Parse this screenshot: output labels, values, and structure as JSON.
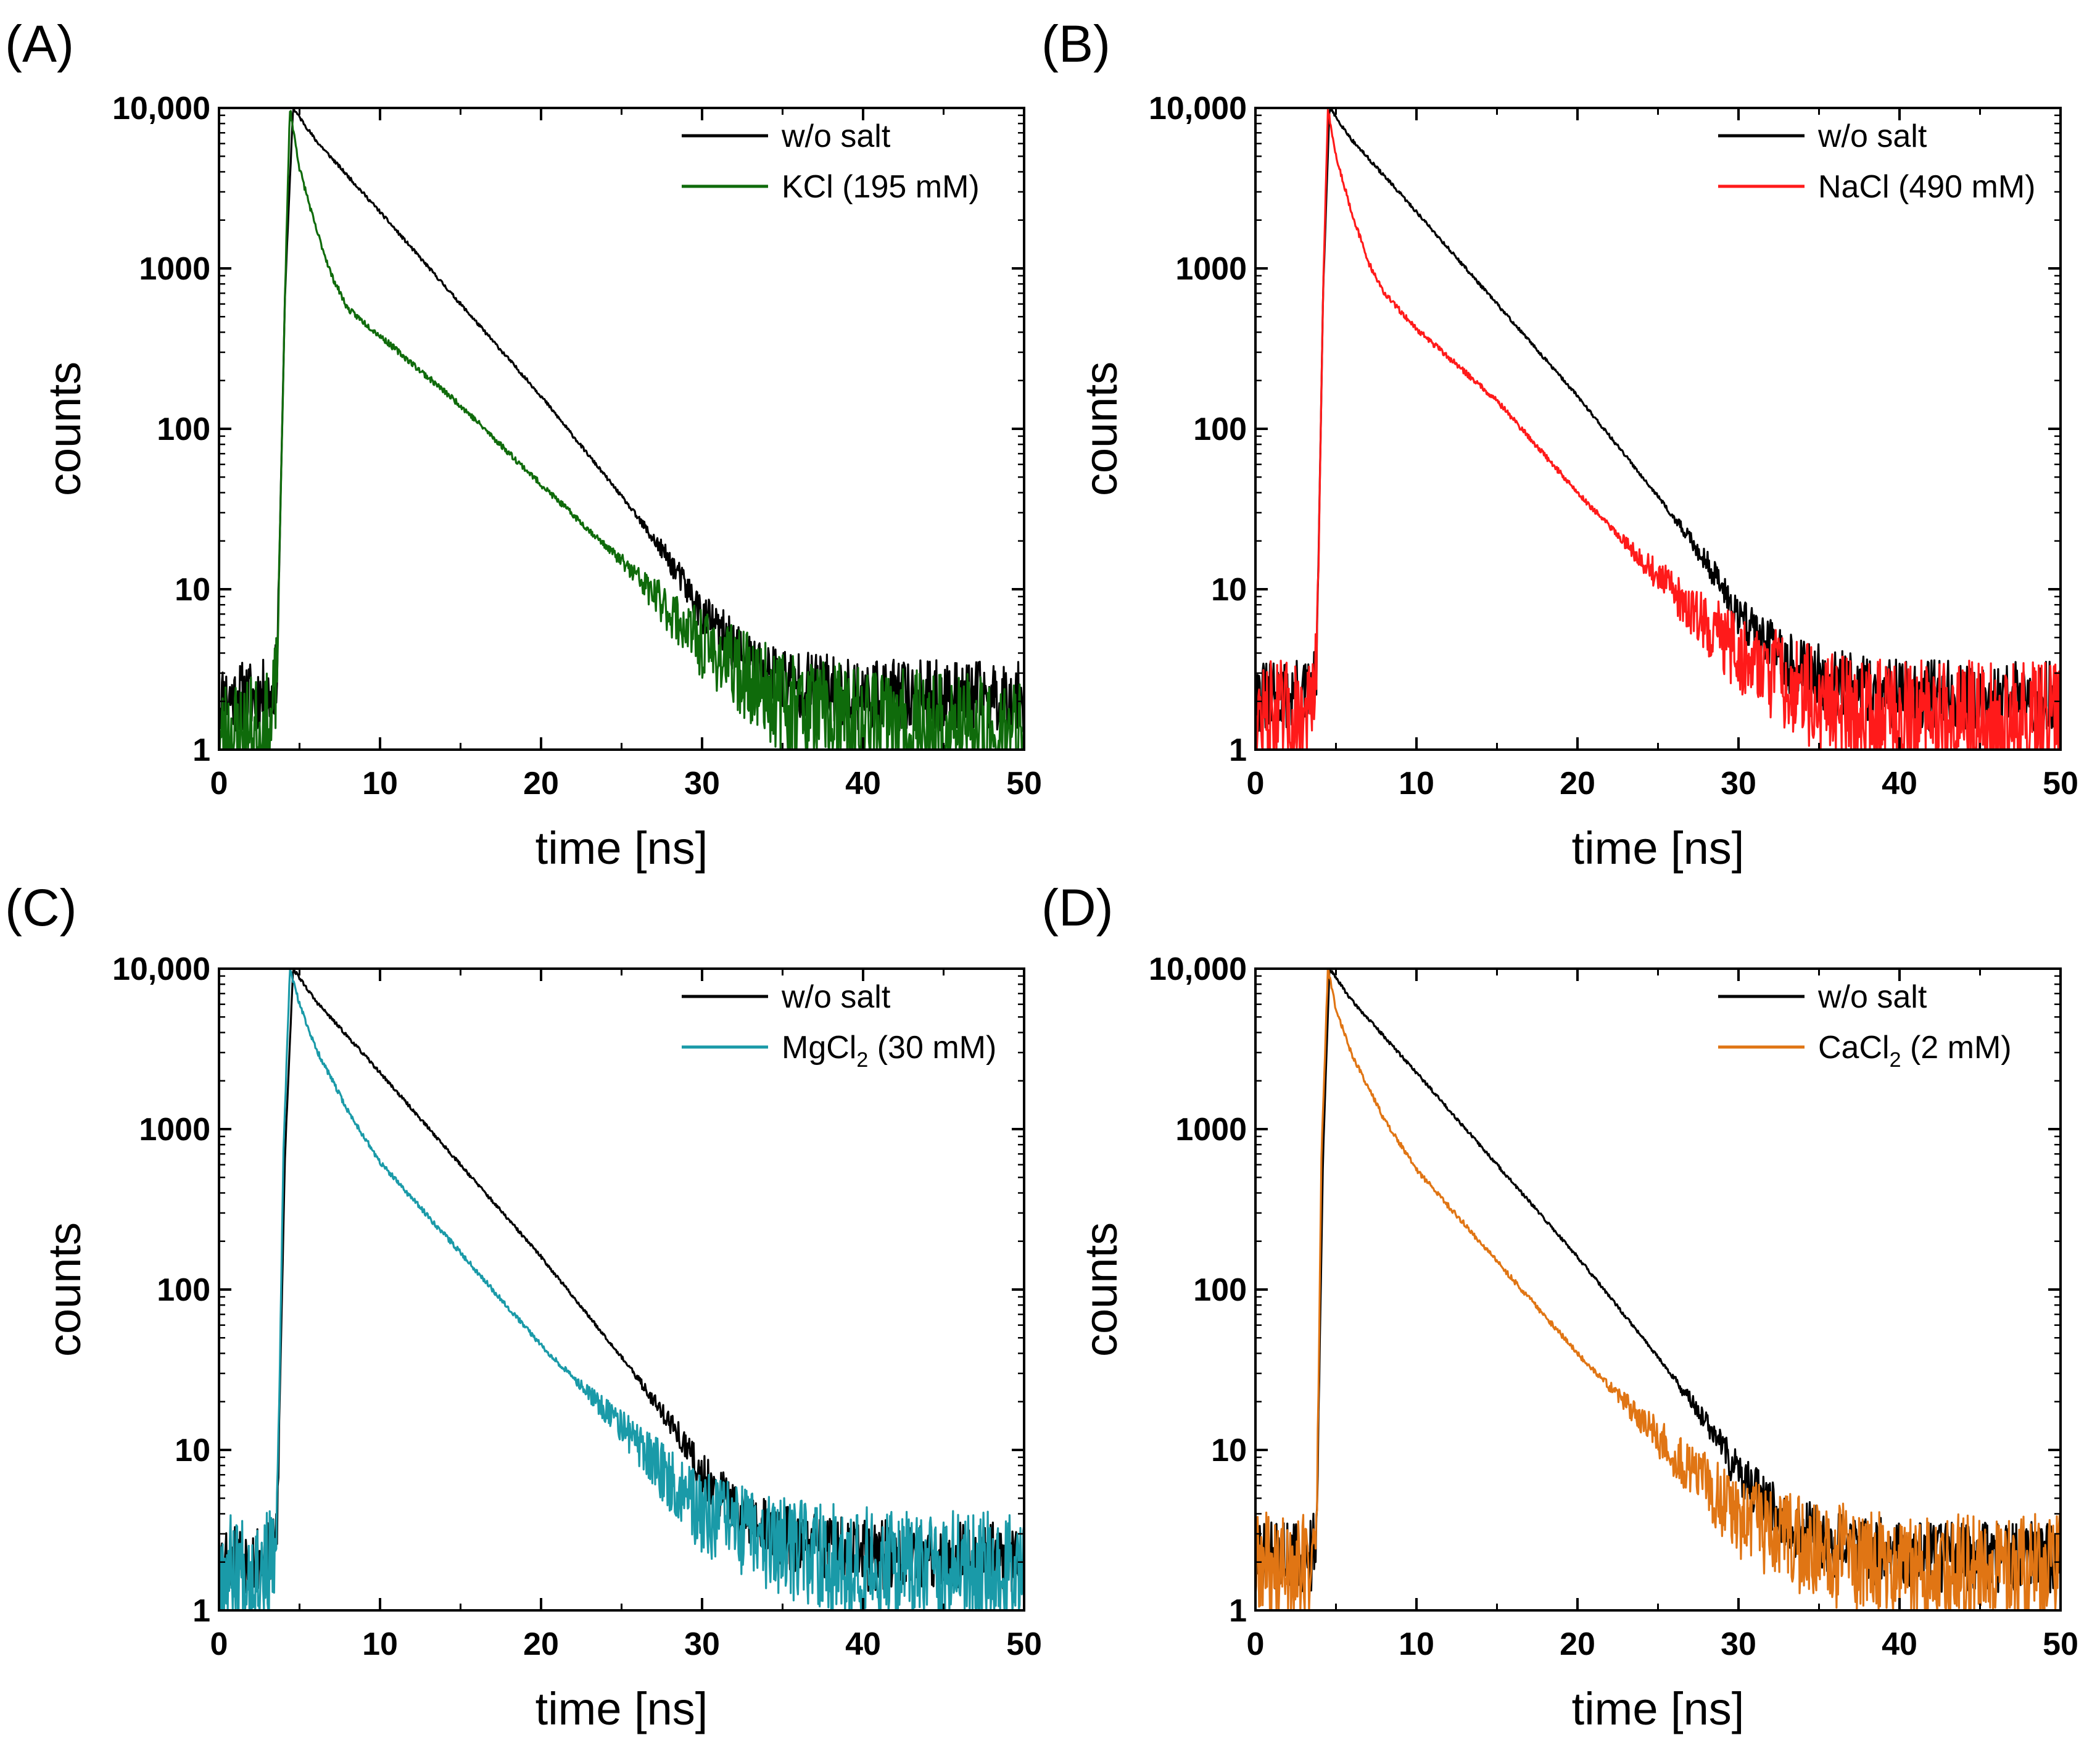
{
  "chart_data": [
    {
      "panel_label": "(A)",
      "type": "line",
      "xlabel": "time [ns]",
      "ylabel": "counts",
      "xlim": [
        0,
        50
      ],
      "ylim": [
        1,
        10000
      ],
      "yscale": "log",
      "x_ticks": [
        0,
        10,
        20,
        30,
        40,
        50
      ],
      "x_tick_labels": [
        "0",
        "10",
        "20",
        "30",
        "40",
        "50"
      ],
      "y_ticks": [
        1,
        10,
        100,
        1000,
        10000
      ],
      "y_tick_labels": [
        "1",
        "10",
        "100",
        "1000",
        "10,000"
      ],
      "legend_position": "top-right",
      "series": [
        {
          "name": "w/o salt",
          "name_main": "w/o salt",
          "name_sub": "",
          "name_tail": "",
          "color": "#000000",
          "baseline": 2.1,
          "noise": 0.18,
          "seed": 11,
          "points": [
            [
              0,
              2.1
            ],
            [
              3.3,
              2.2
            ],
            [
              3.6,
              3.2
            ],
            [
              4.1,
              700
            ],
            [
              4.6,
              10000
            ],
            [
              6,
              6300
            ],
            [
              10,
              2250
            ],
            [
              15,
              600
            ],
            [
              20,
              160
            ],
            [
              25,
              38
            ],
            [
              28,
              15
            ],
            [
              30,
              7
            ],
            [
              33,
              3.5
            ],
            [
              36,
              2.6
            ],
            [
              40,
              2.2
            ],
            [
              50,
              2.1
            ]
          ]
        },
        {
          "name": "KCl (195 mM)",
          "name_main": "KCl (195 mM)",
          "name_sub": "",
          "name_tail": "",
          "color": "#0f6b0b",
          "baseline": 1.15,
          "noise": 0.32,
          "seed": 23,
          "points": [
            [
              0,
              1.15
            ],
            [
              3.2,
              1.2
            ],
            [
              3.6,
              3
            ],
            [
              4.1,
              700
            ],
            [
              4.4,
              10000
            ],
            [
              5,
              4200
            ],
            [
              6,
              1800
            ],
            [
              7,
              900
            ],
            [
              8,
              560
            ],
            [
              10,
              380
            ],
            [
              15,
              140
            ],
            [
              20,
              45
            ],
            [
              25,
              15
            ],
            [
              30,
              4.5
            ],
            [
              35,
              2
            ],
            [
              40,
              1.4
            ],
            [
              50,
              1.15
            ]
          ]
        }
      ]
    },
    {
      "panel_label": "(B)",
      "type": "line",
      "xlabel": "time [ns]",
      "ylabel": "counts",
      "xlim": [
        0,
        50
      ],
      "ylim": [
        1,
        10000
      ],
      "yscale": "log",
      "x_ticks": [
        0,
        10,
        20,
        30,
        40,
        50
      ],
      "x_tick_labels": [
        "0",
        "10",
        "20",
        "30",
        "40",
        "50"
      ],
      "y_ticks": [
        1,
        10,
        100,
        1000,
        10000
      ],
      "y_tick_labels": [
        "1",
        "10",
        "100",
        "1000",
        "10,000"
      ],
      "legend_position": "top-right",
      "series": [
        {
          "name": "w/o salt",
          "name_main": "w/o salt",
          "name_sub": "",
          "name_tail": "",
          "color": "#000000",
          "baseline": 2.1,
          "noise": 0.18,
          "seed": 31,
          "points": [
            [
              0,
              2.1
            ],
            [
              3.5,
              2.2
            ],
            [
              3.8,
              3.2
            ],
            [
              4.2,
              700
            ],
            [
              4.6,
              10000
            ],
            [
              6,
              6300
            ],
            [
              10,
              2250
            ],
            [
              15,
              600
            ],
            [
              20,
              160
            ],
            [
              25,
              38
            ],
            [
              28,
              15
            ],
            [
              30,
              7
            ],
            [
              33,
              3.5
            ],
            [
              36,
              2.6
            ],
            [
              40,
              2.2
            ],
            [
              50,
              2.1
            ]
          ]
        },
        {
          "name": "NaCl (490 mM)",
          "name_main": "NaCl (490 mM)",
          "name_sub": "",
          "name_tail": "",
          "color": "#ff1a1a",
          "baseline": 1.45,
          "noise": 0.3,
          "seed": 47,
          "points": [
            [
              0,
              1.5
            ],
            [
              3.4,
              1.6
            ],
            [
              3.8,
              3
            ],
            [
              4.2,
              700
            ],
            [
              4.5,
              10000
            ],
            [
              5,
              5000
            ],
            [
              6,
              2200
            ],
            [
              7,
              1100
            ],
            [
              8,
              700
            ],
            [
              10,
              420
            ],
            [
              15,
              150
            ],
            [
              20,
              40
            ],
            [
              25,
              12
            ],
            [
              28,
              6
            ],
            [
              30,
              4
            ],
            [
              35,
              2
            ],
            [
              40,
              1.6
            ],
            [
              50,
              1.45
            ]
          ]
        }
      ]
    },
    {
      "panel_label": "(C)",
      "type": "line",
      "xlabel": "time [ns]",
      "ylabel": "counts",
      "xlim": [
        0,
        50
      ],
      "ylim": [
        1,
        10000
      ],
      "yscale": "log",
      "x_ticks": [
        0,
        10,
        20,
        30,
        40,
        50
      ],
      "x_tick_labels": [
        "0",
        "10",
        "20",
        "30",
        "40",
        "50"
      ],
      "y_ticks": [
        1,
        10,
        100,
        1000,
        10000
      ],
      "y_tick_labels": [
        "1",
        "10",
        "100",
        "1000",
        "10,000"
      ],
      "legend_position": "top-right",
      "series": [
        {
          "name": "w/o salt",
          "name_main": "w/o salt",
          "name_sub": "",
          "name_tail": "",
          "color": "#000000",
          "baseline": 2.1,
          "noise": 0.18,
          "seed": 53,
          "points": [
            [
              0,
              2.1
            ],
            [
              3.3,
              2.2
            ],
            [
              3.6,
              3.2
            ],
            [
              4.1,
              700
            ],
            [
              4.6,
              10000
            ],
            [
              6,
              6300
            ],
            [
              10,
              2250
            ],
            [
              15,
              600
            ],
            [
              20,
              160
            ],
            [
              25,
              38
            ],
            [
              28,
              15
            ],
            [
              30,
              7
            ],
            [
              33,
              3.5
            ],
            [
              36,
              2.6
            ],
            [
              40,
              2.2
            ],
            [
              50,
              2.1
            ]
          ]
        },
        {
          "name": "MgCl2 (30 mM)",
          "name_main": "MgCl",
          "name_sub": "2",
          "name_tail": " (30 mM)",
          "color": "#1a9aa8",
          "baseline": 1.85,
          "noise": 0.28,
          "seed": 67,
          "points": [
            [
              0,
              1.8
            ],
            [
              3.3,
              1.9
            ],
            [
              3.6,
              3
            ],
            [
              4.0,
              700
            ],
            [
              4.4,
              10000
            ],
            [
              5,
              6000
            ],
            [
              6,
              3200
            ],
            [
              8,
              1300
            ],
            [
              10,
              620
            ],
            [
              15,
              170
            ],
            [
              20,
              45
            ],
            [
              25,
              14
            ],
            [
              28,
              6.5
            ],
            [
              30,
              4
            ],
            [
              35,
              2.4
            ],
            [
              40,
              2
            ],
            [
              50,
              1.85
            ]
          ]
        }
      ]
    },
    {
      "panel_label": "(D)",
      "type": "line",
      "xlabel": "time [ns]",
      "ylabel": "counts",
      "xlim": [
        0,
        50
      ],
      "ylim": [
        1,
        10000
      ],
      "yscale": "log",
      "x_ticks": [
        0,
        10,
        20,
        30,
        40,
        50
      ],
      "x_tick_labels": [
        "0",
        "10",
        "20",
        "30",
        "40",
        "50"
      ],
      "y_ticks": [
        1,
        10,
        100,
        1000,
        10000
      ],
      "y_tick_labels": [
        "1",
        "10",
        "100",
        "1000",
        "10,000"
      ],
      "legend_position": "top-right",
      "series": [
        {
          "name": "w/o salt",
          "name_main": "w/o salt",
          "name_sub": "",
          "name_tail": "",
          "color": "#000000",
          "baseline": 2.1,
          "noise": 0.18,
          "seed": 71,
          "points": [
            [
              0,
              2.1
            ],
            [
              3.5,
              2.2
            ],
            [
              3.8,
              3.2
            ],
            [
              4.2,
              700
            ],
            [
              4.6,
              10000
            ],
            [
              6,
              6300
            ],
            [
              10,
              2250
            ],
            [
              15,
              600
            ],
            [
              20,
              160
            ],
            [
              25,
              38
            ],
            [
              28,
              15
            ],
            [
              30,
              7
            ],
            [
              33,
              3.5
            ],
            [
              36,
              2.6
            ],
            [
              40,
              2.2
            ],
            [
              50,
              2.1
            ]
          ]
        },
        {
          "name": "CaCl2 (2 mM)",
          "name_main": "CaCl",
          "name_sub": "2",
          "name_tail": " (2 mM)",
          "color": "#e07514",
          "baseline": 1.8,
          "noise": 0.28,
          "seed": 89,
          "points": [
            [
              0,
              1.8
            ],
            [
              3.4,
              1.9
            ],
            [
              3.8,
              3
            ],
            [
              4.1,
              700
            ],
            [
              4.5,
              10000
            ],
            [
              5,
              5600
            ],
            [
              6,
              2900
            ],
            [
              8,
              1150
            ],
            [
              10,
              560
            ],
            [
              15,
              150
            ],
            [
              20,
              40
            ],
            [
              25,
              12
            ],
            [
              28,
              6
            ],
            [
              30,
              3.8
            ],
            [
              35,
              2.3
            ],
            [
              40,
              1.9
            ],
            [
              50,
              1.8
            ]
          ]
        }
      ]
    }
  ]
}
